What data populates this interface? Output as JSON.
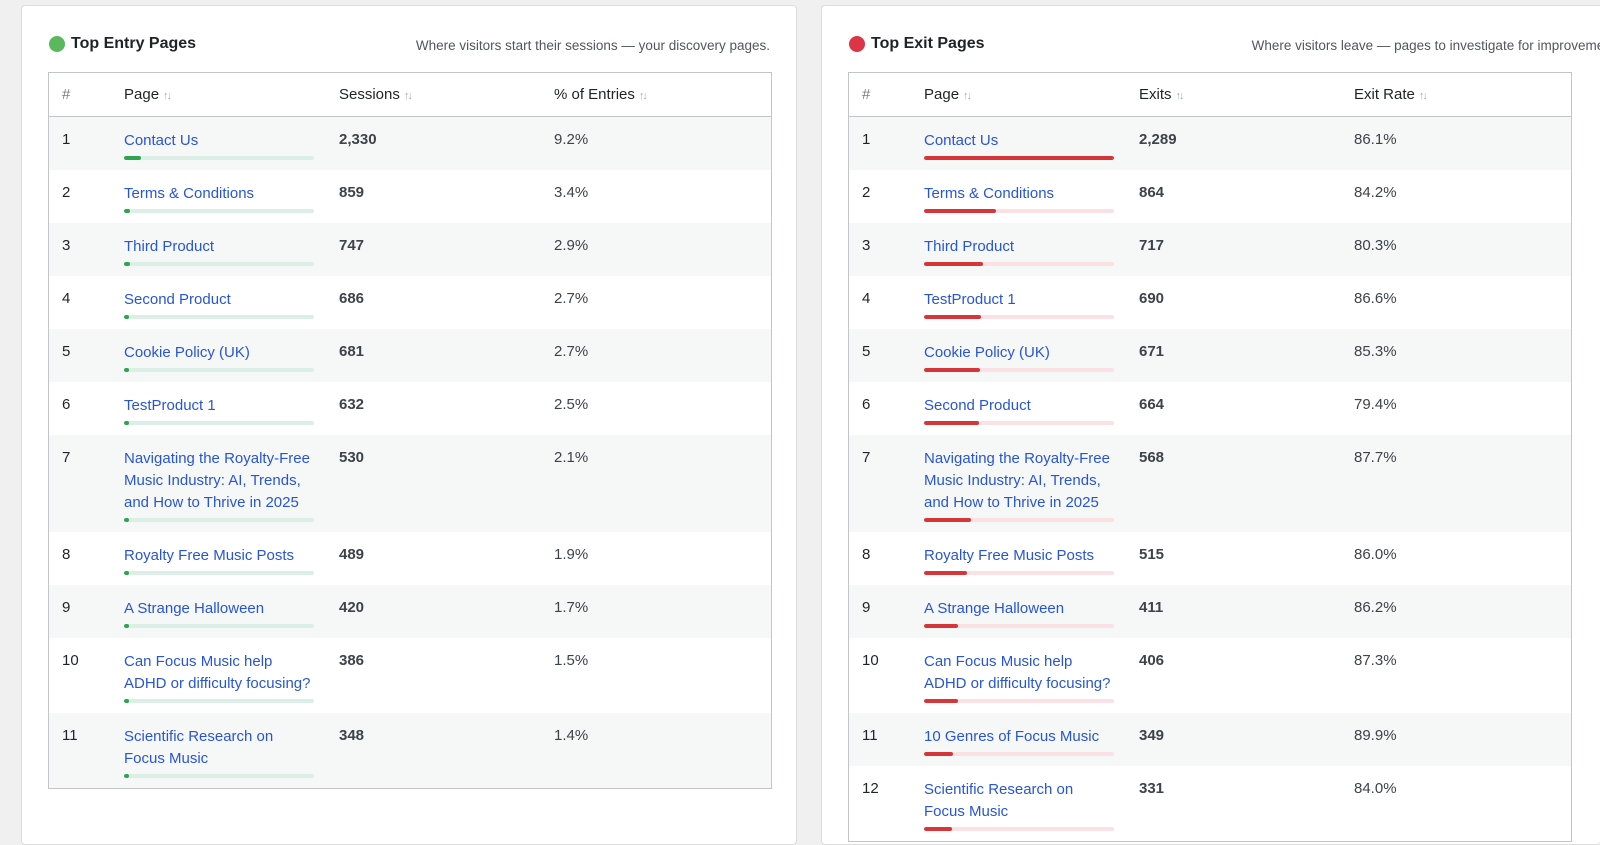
{
  "entry": {
    "title": "Top Entry Pages",
    "subtitle": "Where visitors start their sessions — your discovery pages.",
    "accent": "#5cb85c",
    "bar_color": "#2ea44f",
    "headers": {
      "num": "#",
      "page": "Page",
      "value": "Sessions",
      "pct": "% of Entries"
    },
    "rows": [
      {
        "num": "1",
        "page": "Contact Us",
        "value": "2,330",
        "pct": "9.2%",
        "bar": 0.092
      },
      {
        "num": "2",
        "page": "Terms & Conditions",
        "value": "859",
        "pct": "3.4%",
        "bar": 0.034
      },
      {
        "num": "3",
        "page": "Third Product",
        "value": "747",
        "pct": "2.9%",
        "bar": 0.029
      },
      {
        "num": "4",
        "page": "Second Product",
        "value": "686",
        "pct": "2.7%",
        "bar": 0.027
      },
      {
        "num": "5",
        "page": "Cookie Policy (UK)",
        "value": "681",
        "pct": "2.7%",
        "bar": 0.027
      },
      {
        "num": "6",
        "page": "TestProduct 1",
        "value": "632",
        "pct": "2.5%",
        "bar": 0.025
      },
      {
        "num": "7",
        "page": "Navigating the Royalty-Free Music Industry: AI, Trends, and How to Thrive in 2025",
        "value": "530",
        "pct": "2.1%",
        "bar": 0.021
      },
      {
        "num": "8",
        "page": "Royalty Free Music Posts",
        "value": "489",
        "pct": "1.9%",
        "bar": 0.019
      },
      {
        "num": "9",
        "page": "A Strange Halloween",
        "value": "420",
        "pct": "1.7%",
        "bar": 0.017
      },
      {
        "num": "10",
        "page": "Can Focus Music help ADHD or difficulty focusing?",
        "value": "386",
        "pct": "1.5%",
        "bar": 0.015
      },
      {
        "num": "11",
        "page": "Scientific Research on Focus Music",
        "value": "348",
        "pct": "1.4%",
        "bar": 0.014
      }
    ]
  },
  "exit": {
    "title": "Top Exit Pages",
    "subtitle": "Where visitors leave — pages to investigate for improvements.",
    "accent": "#dc3545",
    "bar_color": "#d63638",
    "headers": {
      "num": "#",
      "page": "Page",
      "value": "Exits",
      "pct": "Exit Rate"
    },
    "rows": [
      {
        "num": "1",
        "page": "Contact Us",
        "value": "2,289",
        "pct": "86.1%",
        "bar": 1.0
      },
      {
        "num": "2",
        "page": "Terms & Conditions",
        "value": "864",
        "pct": "84.2%",
        "bar": 0.377
      },
      {
        "num": "3",
        "page": "Third Product",
        "value": "717",
        "pct": "80.3%",
        "bar": 0.313
      },
      {
        "num": "4",
        "page": "TestProduct 1",
        "value": "690",
        "pct": "86.6%",
        "bar": 0.301
      },
      {
        "num": "5",
        "page": "Cookie Policy (UK)",
        "value": "671",
        "pct": "85.3%",
        "bar": 0.293
      },
      {
        "num": "6",
        "page": "Second Product",
        "value": "664",
        "pct": "79.4%",
        "bar": 0.29
      },
      {
        "num": "7",
        "page": "Navigating the Royalty-Free Music Industry: AI, Trends, and How to Thrive in 2025",
        "value": "568",
        "pct": "87.7%",
        "bar": 0.248
      },
      {
        "num": "8",
        "page": "Royalty Free Music Posts",
        "value": "515",
        "pct": "86.0%",
        "bar": 0.225
      },
      {
        "num": "9",
        "page": "A Strange Halloween",
        "value": "411",
        "pct": "86.2%",
        "bar": 0.18
      },
      {
        "num": "10",
        "page": "Can Focus Music help ADHD or difficulty focusing?",
        "value": "406",
        "pct": "87.3%",
        "bar": 0.177
      },
      {
        "num": "11",
        "page": "10 Genres of Focus Music",
        "value": "349",
        "pct": "89.9%",
        "bar": 0.152
      },
      {
        "num": "12",
        "page": "Scientific Research on Focus Music",
        "value": "331",
        "pct": "84.0%",
        "bar": 0.145
      }
    ]
  }
}
